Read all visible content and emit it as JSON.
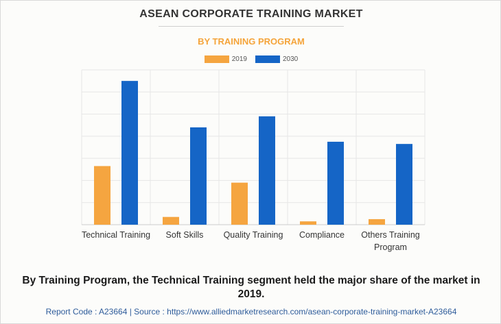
{
  "chart_data": {
    "type": "bar",
    "title": "ASEAN CORPORATE TRAINING MARKET",
    "subtitle": "BY TRAINING PROGRAM",
    "categories": [
      "Technical Training",
      "Soft Skills",
      "Quality Training",
      "Compliance",
      "Others Training Program"
    ],
    "series": [
      {
        "name": "2019",
        "color": "#f5a540",
        "values": [
          26.5,
          3.5,
          19,
          1.5,
          2.5
        ]
      },
      {
        "name": "2030",
        "color": "#1565c6",
        "values": [
          65,
          44,
          49,
          37.5,
          36.5
        ]
      }
    ],
    "ylim": [
      0,
      70
    ],
    "grid": true,
    "legend": "top-center"
  },
  "caption": "By Training Program, the Technical Training segment held the major share of the market in 2019.",
  "footer": "Report Code : A23664  |  Source : https://www.alliedmarketresearch.com/asean-corporate-training-market-A23664"
}
